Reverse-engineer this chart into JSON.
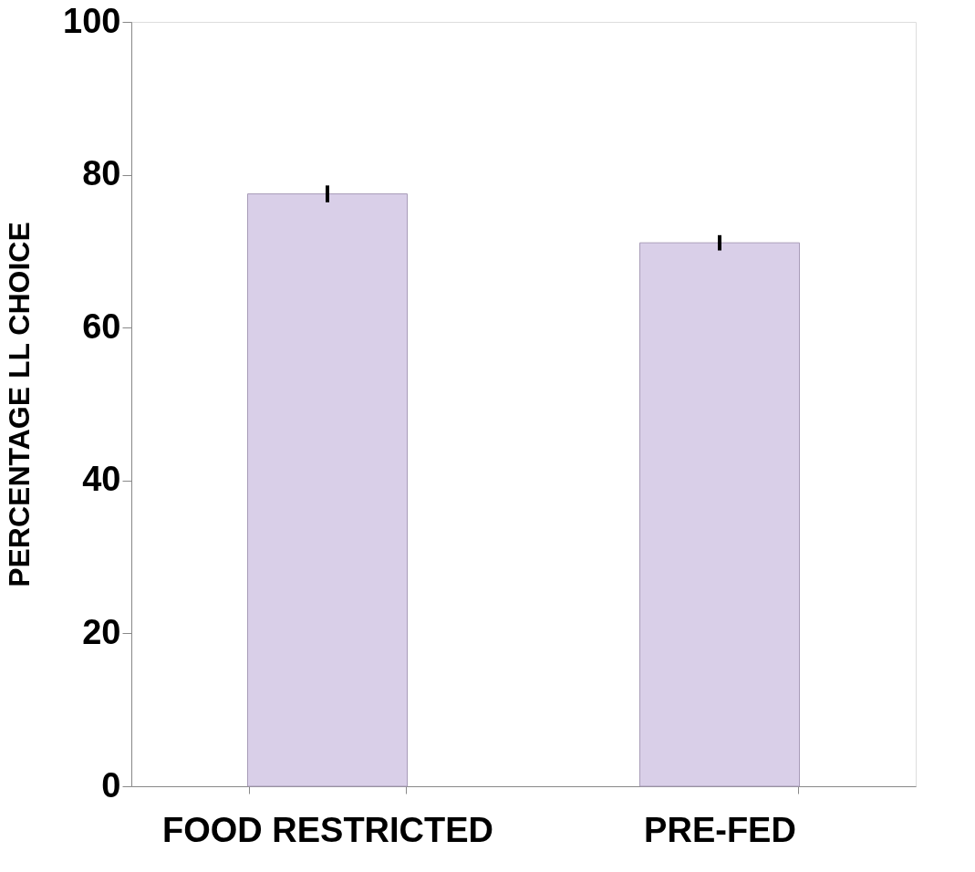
{
  "chart_data": {
    "type": "bar",
    "ylabel": "PERCENTAGE LL CHOICE",
    "categories": [
      "FOOD RESTRICTED",
      "PRE-FED"
    ],
    "values": [
      77.5,
      71.1
    ],
    "errors": [
      1.1,
      1.0
    ],
    "color": "#d9cfe8",
    "ylim": [
      0,
      100
    ],
    "yticks": [
      0,
      20,
      40,
      60,
      80,
      100
    ],
    "grid": false
  }
}
